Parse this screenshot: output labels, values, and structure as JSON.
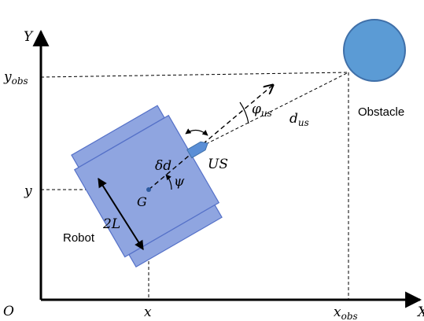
{
  "labels": {
    "axis_y": "Y",
    "axis_x": "X",
    "origin": "O",
    "y_obs": "y",
    "y_obs_sub": "obs",
    "y": "y",
    "x": "x",
    "x_obs": "x",
    "x_obs_sub": "obs",
    "obstacle": "Obstacle",
    "robot": "Robot",
    "d_us": "d",
    "d_us_sub": "us",
    "phi_us": "φ",
    "phi_us_sub": "us",
    "us_sensor": "US",
    "delta_d": "δd",
    "psi": "ψ",
    "center_g": "G",
    "two_l": "2L"
  },
  "colors": {
    "robot_fill": "#8fa5e0",
    "robot_stroke": "#5571c8",
    "obstacle_fill": "#5b9bd5",
    "obstacle_stroke": "#3f6fa8",
    "sensor_fill": "#5b8fd6"
  }
}
